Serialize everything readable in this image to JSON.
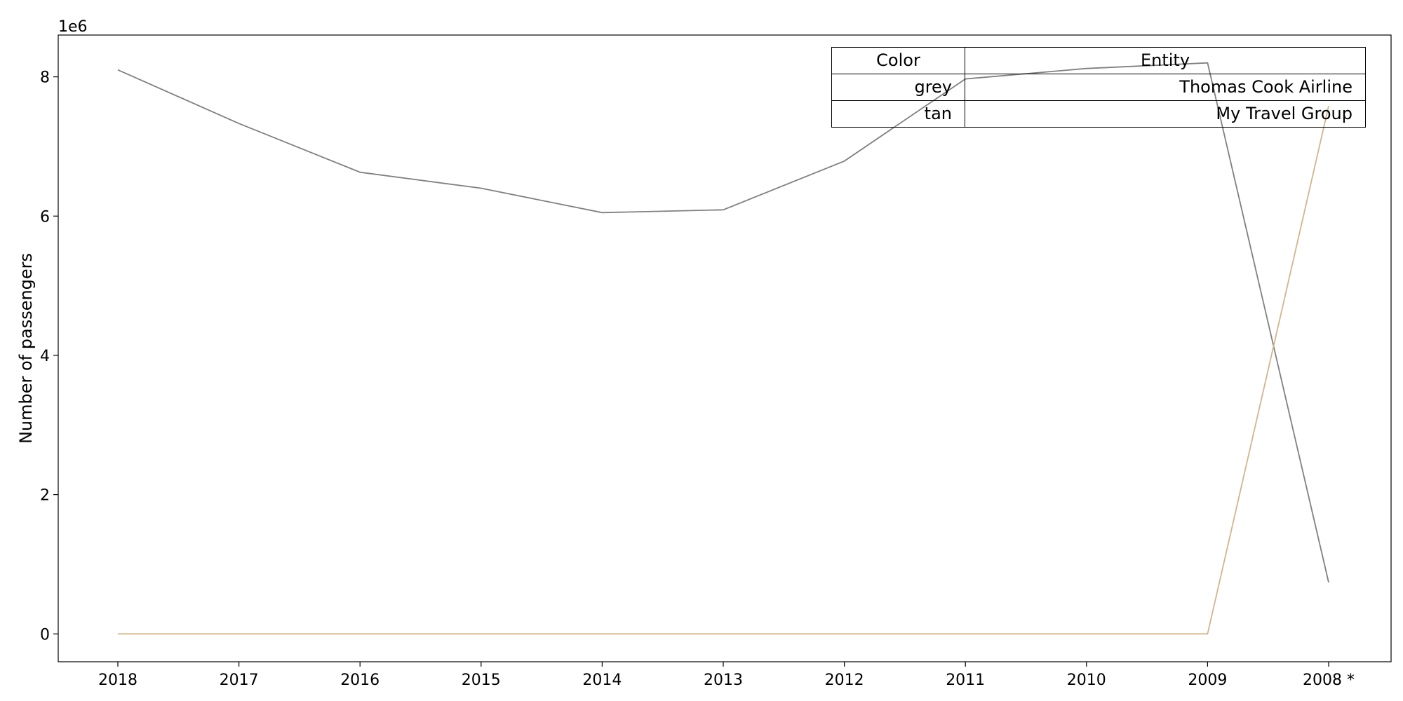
{
  "chart_data": {
    "type": "line",
    "title": "",
    "xlabel": "",
    "ylabel": "Number of passengers",
    "y_offset_label": "1e6",
    "categories": [
      "2018",
      "2017",
      "2016",
      "2015",
      "2014",
      "2013",
      "2012",
      "2011",
      "2010",
      "2009",
      "2008 *"
    ],
    "ylim": [
      -400000,
      8600000
    ],
    "yticks": [
      0,
      2000000,
      4000000,
      6000000,
      8000000
    ],
    "ytick_labels": [
      "0",
      "2",
      "4",
      "6",
      "8"
    ],
    "grid": false,
    "series": [
      {
        "name": "Thomas Cook Airline",
        "color": "#808080",
        "values": [
          8100000,
          7330000,
          6630000,
          6400000,
          6050000,
          6090000,
          6790000,
          7970000,
          8120000,
          8200000,
          740000
        ]
      },
      {
        "name": "My Travel Group",
        "color": "#d2b48c",
        "values": [
          0,
          0,
          0,
          0,
          0,
          0,
          0,
          0,
          0,
          0,
          7580000
        ]
      }
    ],
    "legend": {
      "placement": "top-right",
      "header": [
        "Color",
        "Entity"
      ],
      "rows": [
        {
          "color": "grey",
          "entity": "Thomas Cook Airline"
        },
        {
          "color": "tan",
          "entity": "My Travel Group"
        }
      ]
    }
  }
}
